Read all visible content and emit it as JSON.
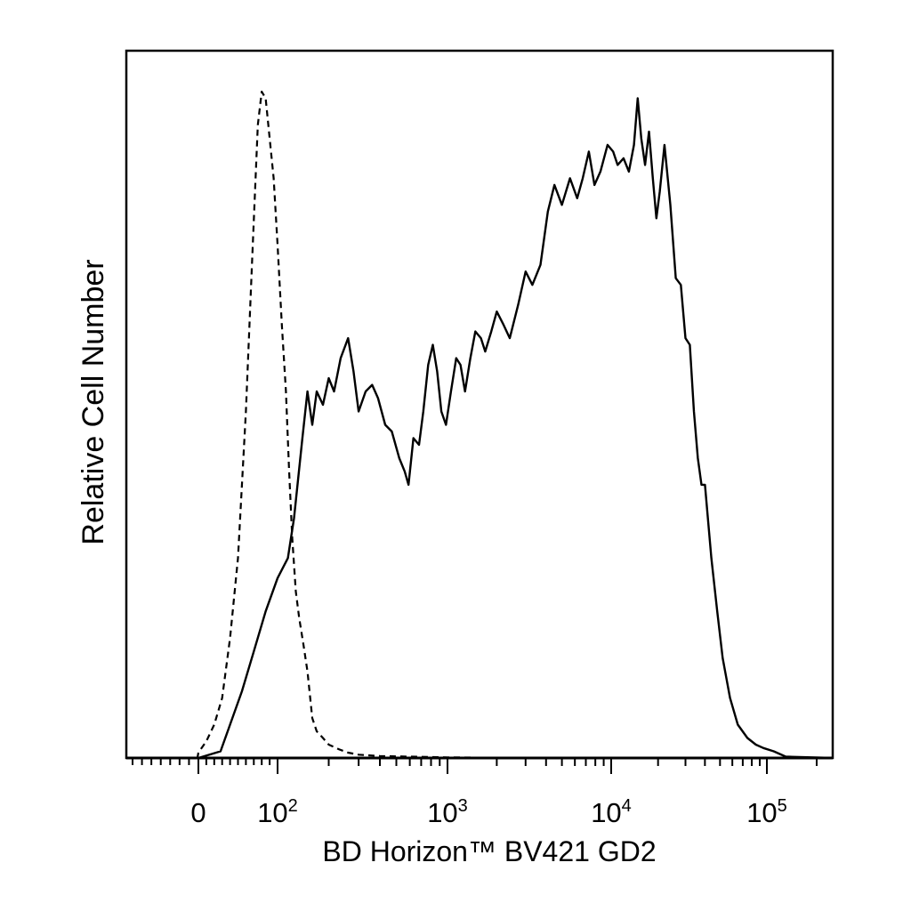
{
  "chart_data": {
    "type": "line",
    "xlabel": "BD Horizon™ BV421 GD2",
    "ylabel": "Relative Cell Number",
    "x_scale": "biexponential",
    "xlim": [
      -700,
      250000
    ],
    "ylim": [
      0,
      1
    ],
    "grid": false,
    "x_tick_labels": [
      {
        "value": 0,
        "base": "0",
        "exp": ""
      },
      {
        "value": 100,
        "base": "10",
        "exp": "2"
      },
      {
        "value": 1000,
        "base": "10",
        "exp": "3"
      },
      {
        "value": 10000,
        "base": "10",
        "exp": "4"
      },
      {
        "value": 100000,
        "base": "10",
        "exp": "5"
      }
    ],
    "series": [
      {
        "style": "solid",
        "points": [
          [
            0,
            0
          ],
          [
            28,
            0.01
          ],
          [
            40,
            0.05
          ],
          [
            55,
            0.1
          ],
          [
            70,
            0.16
          ],
          [
            85,
            0.22
          ],
          [
            100,
            0.27
          ],
          [
            115,
            0.3
          ],
          [
            125,
            0.36
          ],
          [
            140,
            0.48
          ],
          [
            150,
            0.55
          ],
          [
            160,
            0.5
          ],
          [
            170,
            0.55
          ],
          [
            185,
            0.53
          ],
          [
            200,
            0.57
          ],
          [
            215,
            0.55
          ],
          [
            235,
            0.6
          ],
          [
            260,
            0.63
          ],
          [
            280,
            0.58
          ],
          [
            300,
            0.52
          ],
          [
            330,
            0.55
          ],
          [
            360,
            0.56
          ],
          [
            390,
            0.54
          ],
          [
            430,
            0.5
          ],
          [
            470,
            0.49
          ],
          [
            520,
            0.45
          ],
          [
            560,
            0.43
          ],
          [
            590,
            0.41
          ],
          [
            630,
            0.48
          ],
          [
            680,
            0.47
          ],
          [
            720,
            0.52
          ],
          [
            770,
            0.59
          ],
          [
            820,
            0.62
          ],
          [
            870,
            0.58
          ],
          [
            920,
            0.52
          ],
          [
            980,
            0.5
          ],
          [
            1050,
            0.55
          ],
          [
            1130,
            0.6
          ],
          [
            1200,
            0.59
          ],
          [
            1280,
            0.55
          ],
          [
            1380,
            0.6
          ],
          [
            1480,
            0.64
          ],
          [
            1600,
            0.63
          ],
          [
            1700,
            0.61
          ],
          [
            1850,
            0.64
          ],
          [
            2000,
            0.67
          ],
          [
            2200,
            0.65
          ],
          [
            2400,
            0.63
          ],
          [
            2700,
            0.68
          ],
          [
            3000,
            0.73
          ],
          [
            3300,
            0.71
          ],
          [
            3700,
            0.74
          ],
          [
            4100,
            0.82
          ],
          [
            4500,
            0.86
          ],
          [
            5000,
            0.83
          ],
          [
            5600,
            0.87
          ],
          [
            6200,
            0.84
          ],
          [
            6700,
            0.87
          ],
          [
            7300,
            0.91
          ],
          [
            7900,
            0.86
          ],
          [
            8600,
            0.88
          ],
          [
            9500,
            0.92
          ],
          [
            10300,
            0.91
          ],
          [
            11000,
            0.89
          ],
          [
            12000,
            0.9
          ],
          [
            13000,
            0.88
          ],
          [
            14000,
            0.92
          ],
          [
            14800,
            0.99
          ],
          [
            15600,
            0.93
          ],
          [
            16500,
            0.89
          ],
          [
            17500,
            0.94
          ],
          [
            18500,
            0.87
          ],
          [
            19500,
            0.81
          ],
          [
            20500,
            0.85
          ],
          [
            22000,
            0.92
          ],
          [
            24000,
            0.83
          ],
          [
            26000,
            0.72
          ],
          [
            28000,
            0.71
          ],
          [
            30000,
            0.63
          ],
          [
            32000,
            0.62
          ],
          [
            34000,
            0.52
          ],
          [
            36000,
            0.45
          ],
          [
            38000,
            0.41
          ],
          [
            40000,
            0.41
          ],
          [
            44000,
            0.3
          ],
          [
            48000,
            0.22
          ],
          [
            52000,
            0.15
          ],
          [
            58000,
            0.09
          ],
          [
            65000,
            0.05
          ],
          [
            75000,
            0.03
          ],
          [
            85000,
            0.02
          ],
          [
            95000,
            0.015
          ],
          [
            110000,
            0.01
          ],
          [
            130000,
            0.002
          ],
          [
            250000,
            0
          ]
        ]
      },
      {
        "style": "dashed",
        "points": [
          [
            -700,
            0
          ],
          [
            -10,
            0
          ],
          [
            0,
            0.008
          ],
          [
            10,
            0.025
          ],
          [
            20,
            0.05
          ],
          [
            30,
            0.09
          ],
          [
            40,
            0.18
          ],
          [
            50,
            0.3
          ],
          [
            60,
            0.52
          ],
          [
            68,
            0.75
          ],
          [
            75,
            0.95
          ],
          [
            80,
            1.0
          ],
          [
            85,
            0.99
          ],
          [
            90,
            0.93
          ],
          [
            95,
            0.87
          ],
          [
            100,
            0.77
          ],
          [
            106,
            0.65
          ],
          [
            112,
            0.55
          ],
          [
            117,
            0.43
          ],
          [
            122,
            0.33
          ],
          [
            128,
            0.25
          ],
          [
            134,
            0.21
          ],
          [
            142,
            0.17
          ],
          [
            150,
            0.13
          ],
          [
            160,
            0.06
          ],
          [
            170,
            0.04
          ],
          [
            185,
            0.03
          ],
          [
            200,
            0.02
          ],
          [
            230,
            0.013
          ],
          [
            260,
            0.008
          ],
          [
            300,
            0.005
          ],
          [
            400,
            0.003
          ],
          [
            600,
            0.002
          ],
          [
            1000,
            0.001
          ],
          [
            3000,
            0
          ],
          [
            250000,
            0
          ]
        ]
      }
    ]
  }
}
